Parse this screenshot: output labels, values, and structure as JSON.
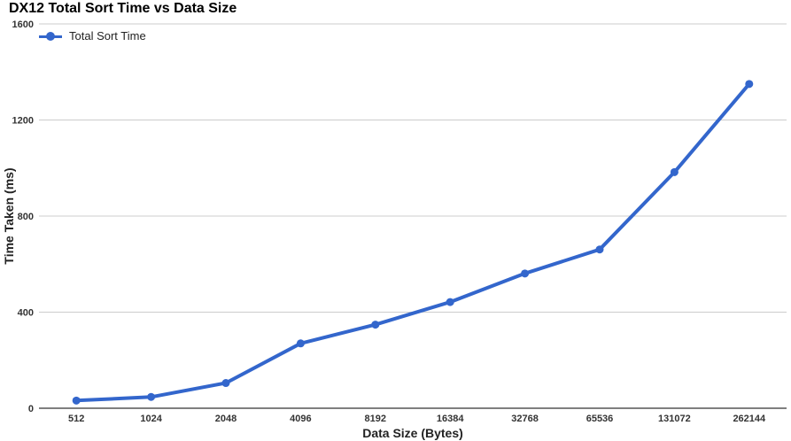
{
  "chart_data": {
    "type": "line",
    "title": "DX12 Total Sort Time vs Data Size",
    "xlabel": "Data Size (Bytes)",
    "ylabel": "Time Taken (ms)",
    "categories": [
      "512",
      "1024",
      "2048",
      "4096",
      "8192",
      "16384",
      "32768",
      "65536",
      "131072",
      "262144"
    ],
    "series": [
      {
        "name": "Total Sort Time",
        "color": "#3366cc",
        "values": [
          32,
          47,
          105,
          270,
          348,
          442,
          561,
          661,
          983,
          1350
        ]
      }
    ],
    "ylim": [
      0,
      1600
    ],
    "yticks": [
      "0",
      "400",
      "800",
      "1200",
      "1600"
    ],
    "grid": true,
    "legend_position": "top-left"
  }
}
